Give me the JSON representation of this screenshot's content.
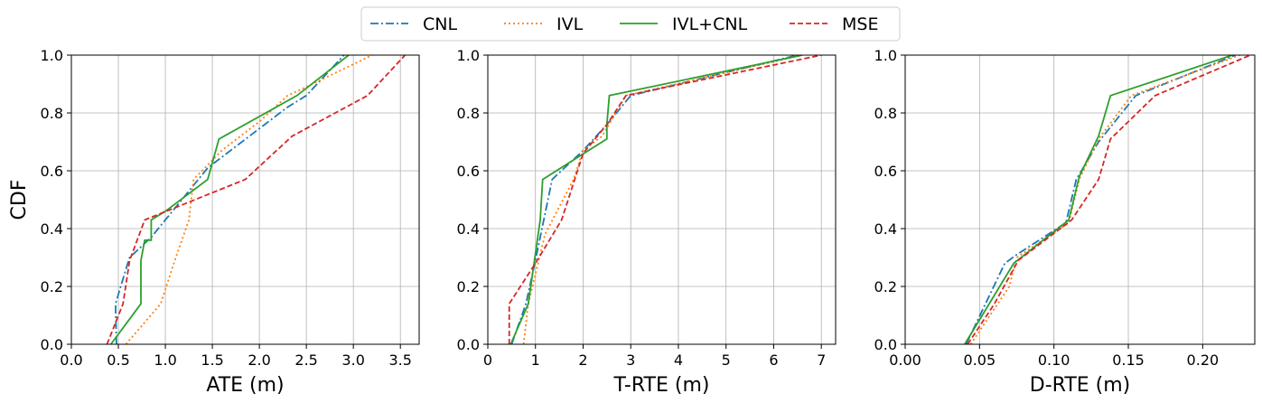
{
  "legend": {
    "placement": "top-center",
    "entries": [
      {
        "name": "CNL",
        "color": "#1f77b4",
        "dash": "dashdot"
      },
      {
        "name": "IVL",
        "color": "#ff7f0e",
        "dash": "dotted"
      },
      {
        "name": "IVL+CNL",
        "color": "#2ca02c",
        "dash": "solid"
      },
      {
        "name": "MSE",
        "color": "#d62728",
        "dash": "dashed"
      }
    ]
  },
  "chart_data": [
    {
      "type": "line",
      "xlabel": "ATE (m)",
      "ylabel": "CDF",
      "xlim": [
        0,
        3.7
      ],
      "ylim": [
        0,
        1
      ],
      "xticks": [
        "0.0",
        "0.5",
        "1.0",
        "1.5",
        "2.0",
        "2.5",
        "3.0",
        "3.5"
      ],
      "xtick_values": [
        0,
        0.5,
        1.0,
        1.5,
        2.0,
        2.5,
        3.0,
        3.5
      ],
      "yticks": [
        "0.0",
        "0.2",
        "0.4",
        "0.6",
        "0.8",
        "1.0"
      ],
      "ytick_values": [
        0,
        0.2,
        0.4,
        0.6,
        0.8,
        1.0
      ],
      "grid": true,
      "series": [
        {
          "name": "CNL",
          "x": [
            0.48,
            0.47,
            0.6,
            0.62,
            0.85,
            1.2,
            1.45,
            2.3,
            2.5,
            2.9
          ],
          "y": [
            0.0,
            0.14,
            0.28,
            0.3,
            0.37,
            0.51,
            0.61,
            0.82,
            0.86,
            1.0
          ]
        },
        {
          "name": "IVL",
          "x": [
            0.58,
            0.95,
            1.1,
            1.25,
            1.3,
            1.6,
            2.0,
            2.3,
            2.5,
            3.2
          ],
          "y": [
            0.0,
            0.14,
            0.29,
            0.43,
            0.57,
            0.67,
            0.77,
            0.86,
            0.89,
            1.0
          ]
        },
        {
          "name": "IVL+CNL",
          "x": [
            0.42,
            0.74,
            0.74,
            0.78,
            0.85,
            0.85,
            1.0,
            1.45,
            1.57,
            2.4,
            2.95
          ],
          "y": [
            0.0,
            0.14,
            0.29,
            0.36,
            0.36,
            0.43,
            0.46,
            0.57,
            0.71,
            0.86,
            1.0
          ]
        },
        {
          "name": "MSE",
          "x": [
            0.38,
            0.55,
            0.62,
            0.78,
            1.85,
            2.35,
            3.15,
            3.55
          ],
          "y": [
            0.0,
            0.14,
            0.29,
            0.43,
            0.57,
            0.72,
            0.86,
            1.0
          ]
        }
      ]
    },
    {
      "type": "line",
      "xlabel": "T-RTE (m)",
      "ylabel": "",
      "xlim": [
        0,
        7.3
      ],
      "ylim": [
        0,
        1
      ],
      "xticks": [
        "0",
        "1",
        "2",
        "3",
        "4",
        "5",
        "6",
        "7"
      ],
      "xtick_values": [
        0,
        1,
        2,
        3,
        4,
        5,
        6,
        7
      ],
      "yticks": [
        "0.0",
        "0.2",
        "0.4",
        "0.6",
        "0.8",
        "1.0"
      ],
      "ytick_values": [
        0,
        0.2,
        0.4,
        0.6,
        0.8,
        1.0
      ],
      "grid": true,
      "series": [
        {
          "name": "CNL",
          "x": [
            0.5,
            0.8,
            1.0,
            1.35,
            2.0,
            2.5,
            3.0,
            6.5
          ],
          "y": [
            0.0,
            0.14,
            0.29,
            0.57,
            0.67,
            0.76,
            0.86,
            1.0
          ]
        },
        {
          "name": "IVL",
          "x": [
            0.75,
            0.85,
            1.2,
            1.8,
            2.0,
            2.4,
            2.9,
            6.6
          ],
          "y": [
            0.0,
            0.14,
            0.38,
            0.57,
            0.67,
            0.72,
            0.86,
            1.0
          ]
        },
        {
          "name": "IVL+CNL",
          "x": [
            0.48,
            0.85,
            1.1,
            1.15,
            2.5,
            2.5,
            2.55,
            6.6
          ],
          "y": [
            0.0,
            0.14,
            0.43,
            0.57,
            0.71,
            0.76,
            0.86,
            1.0
          ]
        },
        {
          "name": "MSE",
          "x": [
            0.45,
            0.45,
            1.0,
            1.55,
            2.0,
            2.5,
            2.9,
            7.0
          ],
          "y": [
            0.0,
            0.14,
            0.28,
            0.43,
            0.66,
            0.76,
            0.86,
            1.0
          ]
        }
      ]
    },
    {
      "type": "line",
      "xlabel": "D-RTE (m)",
      "ylabel": "",
      "xlim": [
        0,
        0.235
      ],
      "ylim": [
        0,
        1
      ],
      "xticks": [
        "0.00",
        "0.05",
        "0.10",
        "0.15",
        "0.20"
      ],
      "xtick_values": [
        0,
        0.05,
        0.1,
        0.15,
        0.2
      ],
      "yticks": [
        "0.0",
        "0.2",
        "0.4",
        "0.6",
        "0.8",
        "1.0"
      ],
      "ytick_values": [
        0,
        0.2,
        0.4,
        0.6,
        0.8,
        1.0
      ],
      "grid": true,
      "series": [
        {
          "name": "CNL",
          "x": [
            0.041,
            0.067,
            0.075,
            0.108,
            0.115,
            0.13,
            0.155,
            0.222
          ],
          "y": [
            0.0,
            0.28,
            0.31,
            0.42,
            0.57,
            0.7,
            0.86,
            1.0
          ]
        },
        {
          "name": "IVL",
          "x": [
            0.044,
            0.07,
            0.075,
            0.11,
            0.117,
            0.13,
            0.152,
            0.225
          ],
          "y": [
            0.0,
            0.2,
            0.3,
            0.42,
            0.57,
            0.71,
            0.86,
            1.0
          ]
        },
        {
          "name": "IVL+CNL",
          "x": [
            0.04,
            0.073,
            0.11,
            0.117,
            0.13,
            0.138,
            0.22
          ],
          "y": [
            0.0,
            0.28,
            0.43,
            0.58,
            0.72,
            0.86,
            1.0
          ]
        },
        {
          "name": "MSE",
          "x": [
            0.042,
            0.06,
            0.076,
            0.112,
            0.13,
            0.138,
            0.168,
            0.232
          ],
          "y": [
            0.0,
            0.14,
            0.29,
            0.43,
            0.57,
            0.71,
            0.86,
            1.0
          ]
        }
      ]
    }
  ]
}
